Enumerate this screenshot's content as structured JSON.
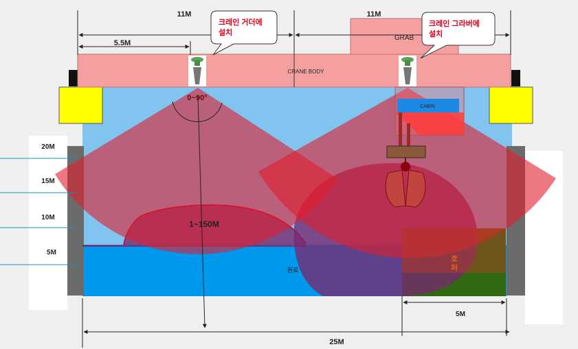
{
  "dimensions": {
    "top_left": "11M",
    "top_right": "11M",
    "offset": "5.5M",
    "hopper_width": "5M",
    "total_width": "25M"
  },
  "heights": [
    "20M",
    "15M",
    "10M",
    "5M"
  ],
  "callouts": {
    "girder": [
      "크레인 거더에",
      "설치"
    ],
    "grabber": [
      "크레인 그라버에",
      "설치"
    ]
  },
  "labels": {
    "grab": "GRAB",
    "crane_body": "CRANE BODY",
    "cabin": "CABIN",
    "angle": "0~90°",
    "range": "1~150M",
    "material": "원료",
    "hopper": [
      "호",
      "퍼"
    ]
  },
  "colors": {
    "background": "#efefef",
    "pit_water": "#0099ee",
    "upper_pit": "#82c4f0",
    "crane_body": "#f4a0a0",
    "wall": "#6b6b6b",
    "wheel_box": "#ffff00",
    "beam": "rgba(225,30,45,0.62)",
    "material_mound": "rgba(120,40,110,0.78)",
    "hopper": "#2f6a12",
    "hopper_overlay": "rgba(190,60,40,0.55)",
    "callout_text": "#e0001b",
    "hopper_text": "#ff7a00",
    "cabin": "#1e88e5"
  }
}
